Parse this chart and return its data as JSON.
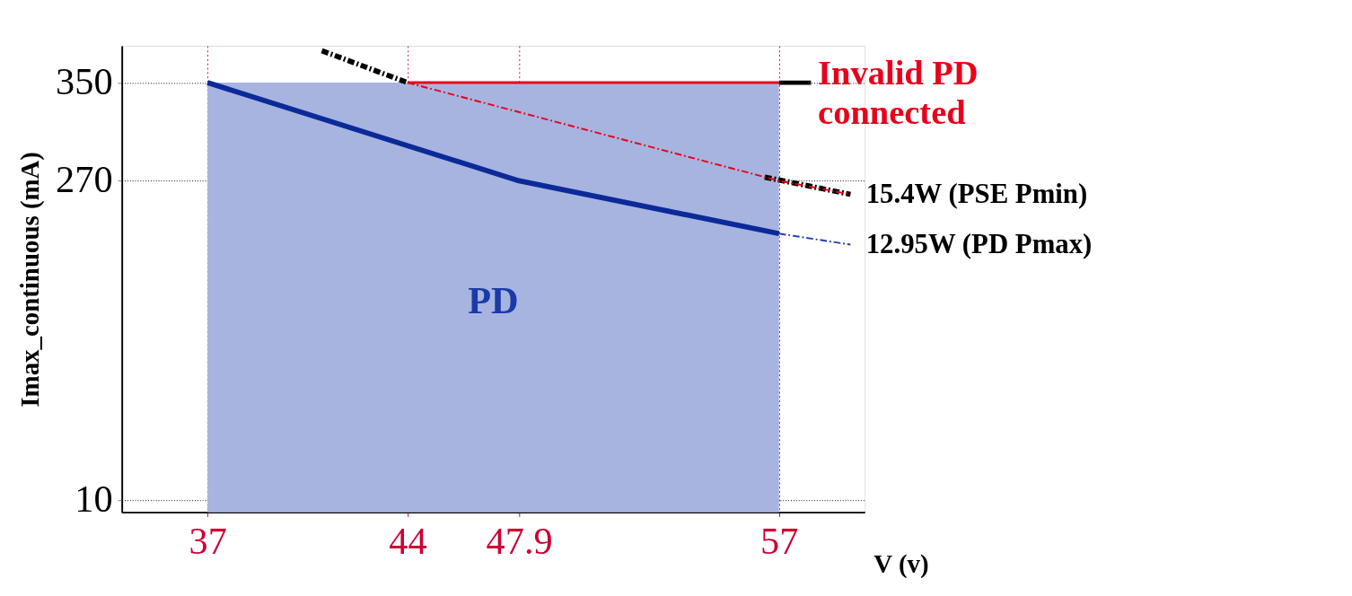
{
  "chart_data": {
    "type": "line",
    "xlabel": "V (v)",
    "ylabel": "Imax_continuous (mA)",
    "xlim": [
      34,
      60
    ],
    "ylim": [
      0,
      380
    ],
    "xticks": [
      37,
      44,
      47.9,
      57
    ],
    "yticks": [
      10,
      270,
      350
    ],
    "grid": true,
    "series": [
      {
        "name": "PD",
        "type": "area",
        "x": [
          37,
          57
        ],
        "values": [
          350,
          350
        ],
        "color": "#a7b4df"
      },
      {
        "x": [
          37,
          47.9,
          57
        ],
        "values": [
          350,
          270,
          227
        ],
        "color": "#0b2a99",
        "line_style": "solid"
      },
      {
        "name": "12.95W (PD Pmax)",
        "x": [
          57,
          59.5
        ],
        "values": [
          227,
          218
        ],
        "color": "#1f3fb0",
        "line_style": "dashed"
      },
      {
        "x": [
          44,
          57
        ],
        "values": [
          350,
          350
        ],
        "color": "#e8001c",
        "line_style": "solid"
      },
      {
        "x": [
          41,
          44,
          50,
          56.5,
          59.5
        ],
        "values": [
          376,
          350,
          null,
          273,
          259
        ],
        "color": "#000000",
        "line_style": "dashed"
      },
      {
        "name": "15.4W (PSE Pmin)",
        "x": [
          44,
          57,
          59.5
        ],
        "values": [
          350,
          270,
          259
        ],
        "color": "#e8001c",
        "line_style": "dashed"
      }
    ],
    "annotations": [
      {
        "text": "Invalid PD connected",
        "x": 57,
        "y": 350
      }
    ]
  }
}
